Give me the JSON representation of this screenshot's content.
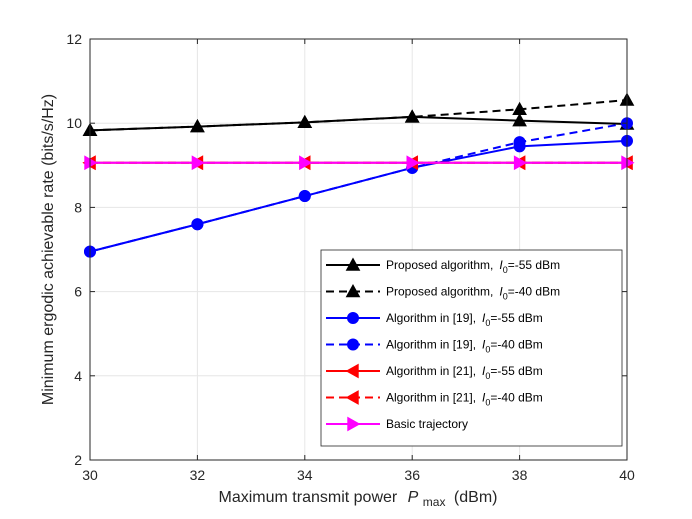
{
  "chart_data": {
    "type": "line",
    "title": "",
    "xlabel": {
      "prefix": "Maximum transmit power",
      "symbol": "P",
      "subscript": "max",
      "suffix": "(dBm)"
    },
    "ylabel": "Minimum ergodic achievable rate (bits/s/Hz)",
    "xlim": [
      30,
      40
    ],
    "ylim": [
      2,
      12
    ],
    "xticks": [
      "30",
      "32",
      "34",
      "36",
      "38",
      "40"
    ],
    "yticks": [
      "2",
      "4",
      "6",
      "8",
      "10",
      "12"
    ],
    "grid": true,
    "legend_position": "bottom-right",
    "x": [
      30,
      32,
      34,
      36,
      38,
      40
    ],
    "series": [
      {
        "name": "Proposed algorithm,",
        "symbol": "I",
        "subscript": "0",
        "condition": "=-55 dBm",
        "values": [
          9.83,
          9.92,
          10.02,
          10.15,
          10.06,
          9.98
        ],
        "color": "#000000",
        "linestyle": "solid",
        "marker": "triangle-up"
      },
      {
        "name": "Proposed algorithm,",
        "symbol": "I",
        "subscript": "0",
        "condition": "=-40 dBm",
        "values": [
          9.83,
          9.92,
          10.02,
          10.15,
          10.33,
          10.55
        ],
        "color": "#000000",
        "linestyle": "dashed",
        "marker": "triangle-up"
      },
      {
        "name": "Algorithm in [19],",
        "symbol": "I",
        "subscript": "0",
        "condition": "=-55 dBm",
        "values": [
          6.95,
          7.6,
          8.27,
          8.94,
          9.45,
          9.58
        ],
        "color": "#0000ff",
        "linestyle": "solid",
        "marker": "circle"
      },
      {
        "name": "Algorithm in [19],",
        "symbol": "I",
        "subscript": "0",
        "condition": "=-40 dBm",
        "values": [
          6.95,
          7.6,
          8.27,
          8.94,
          9.55,
          10.0
        ],
        "color": "#0000ff",
        "linestyle": "dashed",
        "marker": "circle"
      },
      {
        "name": "Algorithm in [21],",
        "symbol": "I",
        "subscript": "0",
        "condition": "=-55 dBm",
        "values": [
          9.06,
          9.06,
          9.06,
          9.06,
          9.06,
          9.06
        ],
        "color": "#ff0000",
        "linestyle": "solid",
        "marker": "triangle-left"
      },
      {
        "name": "Algorithm in [21],",
        "symbol": "I",
        "subscript": "0",
        "condition": "=-40 dBm",
        "values": [
          9.06,
          9.06,
          9.06,
          9.06,
          9.06,
          9.06
        ],
        "color": "#ff0000",
        "linestyle": "dashed",
        "marker": "triangle-left"
      },
      {
        "name": "Basic trajectory",
        "symbol": "",
        "subscript": "",
        "condition": "",
        "values": [
          9.06,
          9.06,
          9.06,
          9.06,
          9.06,
          9.06
        ],
        "color": "#ff00ff",
        "linestyle": "solid",
        "marker": "triangle-right"
      }
    ]
  }
}
